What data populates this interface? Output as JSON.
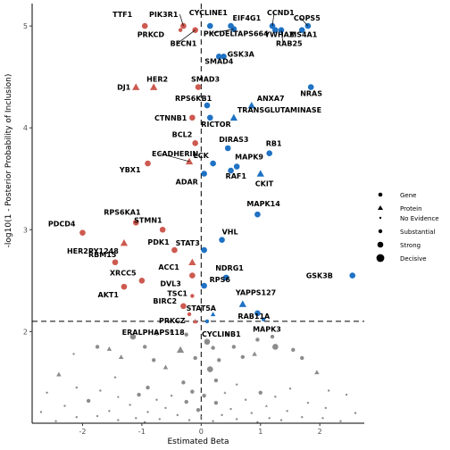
{
  "chart_data": {
    "type": "scatter",
    "xlabel": "Estimated Beta",
    "ylabel": "-log10(1 - Posterior Probability of Inclusion)",
    "xlim": [
      -2.85,
      2.75
    ],
    "ylim": [
      1.1,
      5.22
    ],
    "x_ticks": [
      -2,
      -1,
      0,
      1,
      2
    ],
    "y_ticks": [
      2,
      3,
      4,
      5
    ],
    "threshold_y": 2.1,
    "zero_x": 0,
    "colors": {
      "negative": "#CD5A50",
      "positive": "#1F72C4",
      "non_significant": "#8C8C8C",
      "reference_line": "#000000"
    },
    "legend_shape": {
      "entries": [
        {
          "label": "Gene",
          "shape": "circle"
        },
        {
          "label": "Protein",
          "shape": "triangle"
        }
      ]
    },
    "legend_size": {
      "entries": [
        {
          "label": "No Evidence",
          "size": 1
        },
        {
          "label": "Substantial",
          "size": 2
        },
        {
          "label": "Strong",
          "size": 3
        },
        {
          "label": "Decisive",
          "size": 4
        }
      ]
    },
    "labeled_points": [
      {
        "label": "TTF1",
        "x": -0.95,
        "y": 5.0,
        "shape": "circle",
        "size": 3
      },
      {
        "label": "PIK3R1",
        "x": -0.3,
        "y": 5.0,
        "shape": "circle",
        "size": 3
      },
      {
        "label": "PRKCD",
        "x": -0.35,
        "y": 4.96,
        "shape": "circle",
        "size": 2
      },
      {
        "label": "CYCLINE1",
        "x": 0.15,
        "y": 5.0,
        "shape": "circle",
        "size": 3
      },
      {
        "label": "EIF4G1",
        "x": 0.5,
        "y": 5.0,
        "shape": "circle",
        "size": 3
      },
      {
        "label": "PKCDELTAPS664",
        "x": 0.55,
        "y": 4.97,
        "shape": "circle",
        "size": 3
      },
      {
        "label": "CCND1",
        "x": 1.2,
        "y": 5.0,
        "shape": "circle",
        "size": 3
      },
      {
        "label": "COPS5",
        "x": 1.8,
        "y": 5.0,
        "shape": "circle",
        "size": 3
      },
      {
        "label": "YWHAZ",
        "x": 1.25,
        "y": 4.96,
        "shape": "circle",
        "size": 3
      },
      {
        "label": "MS4A1",
        "x": 1.7,
        "y": 4.96,
        "shape": "circle",
        "size": 3
      },
      {
        "label": "RAB25",
        "x": 1.35,
        "y": 4.96,
        "shape": "circle",
        "size": 3
      },
      {
        "label": "BECN1",
        "x": -0.1,
        "y": 4.96,
        "shape": "circle",
        "size": 3
      },
      {
        "label": "SMAD4",
        "x": 0.3,
        "y": 4.7,
        "shape": "circle",
        "size": 3
      },
      {
        "label": "GSK3A",
        "x": 0.38,
        "y": 4.7,
        "shape": "circle",
        "size": 3
      },
      {
        "label": "DJ1",
        "x": -1.1,
        "y": 4.4,
        "shape": "triangle",
        "size": 3
      },
      {
        "label": "HER2",
        "x": -0.8,
        "y": 4.4,
        "shape": "triangle",
        "size": 3
      },
      {
        "label": "SMAD3",
        "x": -0.05,
        "y": 4.4,
        "shape": "circle",
        "size": 3
      },
      {
        "label": "NRAS",
        "x": 1.85,
        "y": 4.4,
        "shape": "circle",
        "size": 3
      },
      {
        "label": "RPS6KB1",
        "x": 0.1,
        "y": 4.22,
        "shape": "circle",
        "size": 3
      },
      {
        "label": "ANXA7",
        "x": 0.85,
        "y": 4.22,
        "shape": "triangle",
        "size": 3
      },
      {
        "label": "TRANSGLUTAMINASE",
        "x": 0.55,
        "y": 4.1,
        "shape": "triangle",
        "size": 3
      },
      {
        "label": "CTNNB1",
        "x": -0.15,
        "y": 4.1,
        "shape": "circle",
        "size": 3
      },
      {
        "label": "RICTOR",
        "x": 0.15,
        "y": 4.1,
        "shape": "circle",
        "size": 3
      },
      {
        "label": "BCL2",
        "x": -0.1,
        "y": 3.85,
        "shape": "circle",
        "size": 3
      },
      {
        "label": "DIRAS3",
        "x": 0.45,
        "y": 3.8,
        "shape": "circle",
        "size": 3
      },
      {
        "label": "RB1",
        "x": 1.15,
        "y": 3.75,
        "shape": "circle",
        "size": 3
      },
      {
        "label": "YBX1",
        "x": -0.9,
        "y": 3.65,
        "shape": "circle",
        "size": 3
      },
      {
        "label": "ECADHERIN",
        "x": -0.2,
        "y": 3.67,
        "shape": "triangle",
        "size": 3
      },
      {
        "label": "LCK",
        "x": 0.2,
        "y": 3.65,
        "shape": "circle",
        "size": 3
      },
      {
        "label": "MAPK9",
        "x": 0.6,
        "y": 3.62,
        "shape": "circle",
        "size": 3
      },
      {
        "label": "RAF1",
        "x": 0.5,
        "y": 3.58,
        "shape": "circle",
        "size": 3
      },
      {
        "label": "CKIT",
        "x": 1.0,
        "y": 3.55,
        "shape": "triangle",
        "size": 3
      },
      {
        "label": "ADAR",
        "x": 0.05,
        "y": 3.55,
        "shape": "circle",
        "size": 3
      },
      {
        "label": "MAPK14",
        "x": 0.95,
        "y": 3.15,
        "shape": "circle",
        "size": 3
      },
      {
        "label": "RPS6KA1",
        "x": -1.1,
        "y": 3.07,
        "shape": "circle",
        "size": 3
      },
      {
        "label": "STMN1",
        "x": -0.65,
        "y": 3.0,
        "shape": "circle",
        "size": 3
      },
      {
        "label": "PDCD4",
        "x": -2.0,
        "y": 2.97,
        "shape": "circle",
        "size": 3
      },
      {
        "label": "HER2PY1248",
        "x": -1.3,
        "y": 2.87,
        "shape": "triangle",
        "size": 3
      },
      {
        "label": "PDK1",
        "x": -0.45,
        "y": 2.8,
        "shape": "circle",
        "size": 3
      },
      {
        "label": "VHL",
        "x": 0.35,
        "y": 2.9,
        "shape": "circle",
        "size": 3
      },
      {
        "label": "STAT3",
        "x": 0.05,
        "y": 2.8,
        "shape": "circle",
        "size": 3
      },
      {
        "label": "RBM15",
        "x": -1.45,
        "y": 2.68,
        "shape": "circle",
        "size": 3
      },
      {
        "label": "ACC1",
        "x": -0.15,
        "y": 2.68,
        "shape": "triangle",
        "size": 3
      },
      {
        "label": "XRCC5",
        "x": -1.0,
        "y": 2.5,
        "shape": "circle",
        "size": 3
      },
      {
        "label": "DVL3",
        "x": -0.15,
        "y": 2.55,
        "shape": "circle",
        "size": 3
      },
      {
        "label": "NDRG1",
        "x": 0.42,
        "y": 2.53,
        "shape": "circle",
        "size": 3
      },
      {
        "label": "AKT1",
        "x": -1.3,
        "y": 2.44,
        "shape": "circle",
        "size": 3
      },
      {
        "label": "RPS6",
        "x": 0.05,
        "y": 2.45,
        "shape": "circle",
        "size": 3
      },
      {
        "label": "GSK3B",
        "x": 2.55,
        "y": 2.55,
        "shape": "circle",
        "size": 3
      },
      {
        "label": "TSC1",
        "x": -0.15,
        "y": 2.35,
        "shape": "circle",
        "size": 2
      },
      {
        "label": "YAPPS127",
        "x": 0.7,
        "y": 2.27,
        "shape": "triangle",
        "size": 3
      },
      {
        "label": "BIRC2",
        "x": -0.3,
        "y": 2.25,
        "shape": "circle",
        "size": 3
      },
      {
        "label": "RAB11A",
        "x": 0.95,
        "y": 2.18,
        "shape": "circle",
        "size": 3
      },
      {
        "label": "PRKCZ",
        "x": -0.2,
        "y": 2.17,
        "shape": "circle",
        "size": 2
      },
      {
        "label": "STAT5A",
        "x": 0.2,
        "y": 2.17,
        "shape": "triangle",
        "size": 2
      },
      {
        "label": "MAPK3",
        "x": 1.05,
        "y": 2.12,
        "shape": "circle",
        "size": 2
      },
      {
        "label": "ERALPHAPS118",
        "x": -0.1,
        "y": 2.1,
        "shape": "triangle",
        "size": 2
      },
      {
        "label": "CYCLINB1",
        "x": 0.1,
        "y": 2.1,
        "shape": "circle",
        "size": 2
      }
    ],
    "non_significant_points": [
      {
        "x": -1.15,
        "y": 1.95,
        "shape": "circle",
        "size": 3
      },
      {
        "x": -0.75,
        "y": 1.98,
        "shape": "circle",
        "size": 2
      },
      {
        "x": -0.5,
        "y": 2.0,
        "shape": "circle",
        "size": 2
      },
      {
        "x": -0.25,
        "y": 1.97,
        "shape": "circle",
        "size": 2
      },
      {
        "x": 0.1,
        "y": 1.9,
        "shape": "circle",
        "size": 3
      },
      {
        "x": 0.45,
        "y": 1.97,
        "shape": "circle",
        "size": 2
      },
      {
        "x": 0.95,
        "y": 1.92,
        "shape": "circle",
        "size": 2
      },
      {
        "x": 1.2,
        "y": 1.95,
        "shape": "circle",
        "size": 2
      },
      {
        "x": -1.75,
        "y": 1.85,
        "shape": "circle",
        "size": 2
      },
      {
        "x": -1.55,
        "y": 1.83,
        "shape": "triangle",
        "size": 2
      },
      {
        "x": -0.95,
        "y": 1.85,
        "shape": "circle",
        "size": 2
      },
      {
        "x": -0.35,
        "y": 1.82,
        "shape": "triangle",
        "size": 3
      },
      {
        "x": 0.2,
        "y": 1.84,
        "shape": "circle",
        "size": 2
      },
      {
        "x": 0.55,
        "y": 1.85,
        "shape": "circle",
        "size": 2
      },
      {
        "x": 0.9,
        "y": 1.78,
        "shape": "triangle",
        "size": 2
      },
      {
        "x": 1.25,
        "y": 1.85,
        "shape": "circle",
        "size": 3
      },
      {
        "x": 1.55,
        "y": 1.82,
        "shape": "circle",
        "size": 2
      },
      {
        "x": -2.15,
        "y": 1.78,
        "shape": "circle",
        "size": 1
      },
      {
        "x": -1.35,
        "y": 1.75,
        "shape": "triangle",
        "size": 2
      },
      {
        "x": -0.8,
        "y": 1.72,
        "shape": "circle",
        "size": 2
      },
      {
        "x": -0.1,
        "y": 1.74,
        "shape": "circle",
        "size": 2
      },
      {
        "x": 0.3,
        "y": 1.72,
        "shape": "circle",
        "size": 2
      },
      {
        "x": 0.7,
        "y": 1.75,
        "shape": "circle",
        "size": 2
      },
      {
        "x": 1.7,
        "y": 1.74,
        "shape": "circle",
        "size": 2
      },
      {
        "x": -0.6,
        "y": 1.65,
        "shape": "triangle",
        "size": 2
      },
      {
        "x": 0.15,
        "y": 1.63,
        "shape": "circle",
        "size": 3
      },
      {
        "x": -2.4,
        "y": 1.58,
        "shape": "triangle",
        "size": 2
      },
      {
        "x": 1.95,
        "y": 1.6,
        "shape": "triangle",
        "size": 2
      },
      {
        "x": -1.45,
        "y": 1.55,
        "shape": "circle",
        "size": 1
      },
      {
        "x": -0.3,
        "y": 1.5,
        "shape": "circle",
        "size": 2
      },
      {
        "x": 0.25,
        "y": 1.52,
        "shape": "circle",
        "size": 2
      },
      {
        "x": 0.6,
        "y": 1.48,
        "shape": "circle",
        "size": 1
      },
      {
        "x": -0.9,
        "y": 1.45,
        "shape": "circle",
        "size": 2
      },
      {
        "x": -2.1,
        "y": 1.45,
        "shape": "circle",
        "size": 1
      },
      {
        "x": 1.5,
        "y": 1.44,
        "shape": "circle",
        "size": 1
      },
      {
        "x": 2.15,
        "y": 1.42,
        "shape": "circle",
        "size": 1
      },
      {
        "x": -1.7,
        "y": 1.42,
        "shape": "circle",
        "size": 1
      },
      {
        "x": 1.0,
        "y": 1.4,
        "shape": "circle",
        "size": 2
      },
      {
        "x": -0.15,
        "y": 1.41,
        "shape": "circle",
        "size": 2
      },
      {
        "x": 0.4,
        "y": 1.4,
        "shape": "triangle",
        "size": 1
      },
      {
        "x": -1.05,
        "y": 1.38,
        "shape": "circle",
        "size": 2
      },
      {
        "x": 1.25,
        "y": 1.36,
        "shape": "circle",
        "size": 1
      },
      {
        "x": -0.5,
        "y": 1.37,
        "shape": "circle",
        "size": 1
      },
      {
        "x": 0.05,
        "y": 1.37,
        "shape": "circle",
        "size": 2
      },
      {
        "x": -1.4,
        "y": 1.36,
        "shape": "triangle",
        "size": 1
      },
      {
        "x": -2.6,
        "y": 1.4,
        "shape": "circle",
        "size": 1
      },
      {
        "x": 2.45,
        "y": 1.38,
        "shape": "circle",
        "size": 1
      },
      {
        "x": -0.75,
        "y": 1.33,
        "shape": "circle",
        "size": 1
      },
      {
        "x": 0.75,
        "y": 1.33,
        "shape": "circle",
        "size": 1
      },
      {
        "x": -1.9,
        "y": 1.32,
        "shape": "circle",
        "size": 2
      },
      {
        "x": 1.8,
        "y": 1.3,
        "shape": "circle",
        "size": 1
      },
      {
        "x": -0.25,
        "y": 1.31,
        "shape": "circle",
        "size": 2
      },
      {
        "x": 0.25,
        "y": 1.3,
        "shape": "circle",
        "size": 2
      },
      {
        "x": -1.2,
        "y": 1.28,
        "shape": "circle",
        "size": 1
      },
      {
        "x": 1.1,
        "y": 1.27,
        "shape": "triangle",
        "size": 1
      },
      {
        "x": -0.6,
        "y": 1.25,
        "shape": "circle",
        "size": 1
      },
      {
        "x": 0.5,
        "y": 1.24,
        "shape": "circle",
        "size": 1
      },
      {
        "x": -2.3,
        "y": 1.27,
        "shape": "circle",
        "size": 1
      },
      {
        "x": 2.1,
        "y": 1.25,
        "shape": "circle",
        "size": 1
      },
      {
        "x": -0.05,
        "y": 1.23,
        "shape": "circle",
        "size": 2
      },
      {
        "x": -1.55,
        "y": 1.22,
        "shape": "circle",
        "size": 1
      },
      {
        "x": 1.45,
        "y": 1.22,
        "shape": "circle",
        "size": 1
      },
      {
        "x": -0.9,
        "y": 1.21,
        "shape": "circle",
        "size": 1
      },
      {
        "x": 0.85,
        "y": 1.2,
        "shape": "circle",
        "size": 1
      },
      {
        "x": -2.7,
        "y": 1.21,
        "shape": "circle",
        "size": 1
      },
      {
        "x": 2.6,
        "y": 1.2,
        "shape": "circle",
        "size": 1
      },
      {
        "x": -0.4,
        "y": 1.18,
        "shape": "circle",
        "size": 1
      },
      {
        "x": 0.35,
        "y": 1.18,
        "shape": "circle",
        "size": 1
      },
      {
        "x": -1.75,
        "y": 1.17,
        "shape": "circle",
        "size": 1
      },
      {
        "x": 1.7,
        "y": 1.16,
        "shape": "circle",
        "size": 1
      },
      {
        "x": 0.0,
        "y": 1.16,
        "shape": "circle",
        "size": 1
      },
      {
        "x": -1.1,
        "y": 1.15,
        "shape": "circle",
        "size": 1
      },
      {
        "x": 1.15,
        "y": 1.15,
        "shape": "circle",
        "size": 1
      },
      {
        "x": -2.1,
        "y": 1.16,
        "shape": "circle",
        "size": 1
      },
      {
        "x": 2.05,
        "y": 1.15,
        "shape": "circle",
        "size": 1
      },
      {
        "x": -0.7,
        "y": 1.14,
        "shape": "circle",
        "size": 1
      },
      {
        "x": 0.6,
        "y": 1.14,
        "shape": "circle",
        "size": 1
      },
      {
        "x": -1.4,
        "y": 1.13,
        "shape": "circle",
        "size": 1
      },
      {
        "x": 1.35,
        "y": 1.13,
        "shape": "circle",
        "size": 1
      },
      {
        "x": -0.2,
        "y": 1.13,
        "shape": "circle",
        "size": 1
      },
      {
        "x": 0.2,
        "y": 1.12,
        "shape": "circle",
        "size": 1
      },
      {
        "x": -2.45,
        "y": 1.12,
        "shape": "circle",
        "size": 1
      },
      {
        "x": 2.35,
        "y": 1.12,
        "shape": "circle",
        "size": 1
      },
      {
        "x": -0.95,
        "y": 1.11,
        "shape": "circle",
        "size": 1
      },
      {
        "x": 0.95,
        "y": 1.11,
        "shape": "circle",
        "size": 1
      }
    ]
  }
}
